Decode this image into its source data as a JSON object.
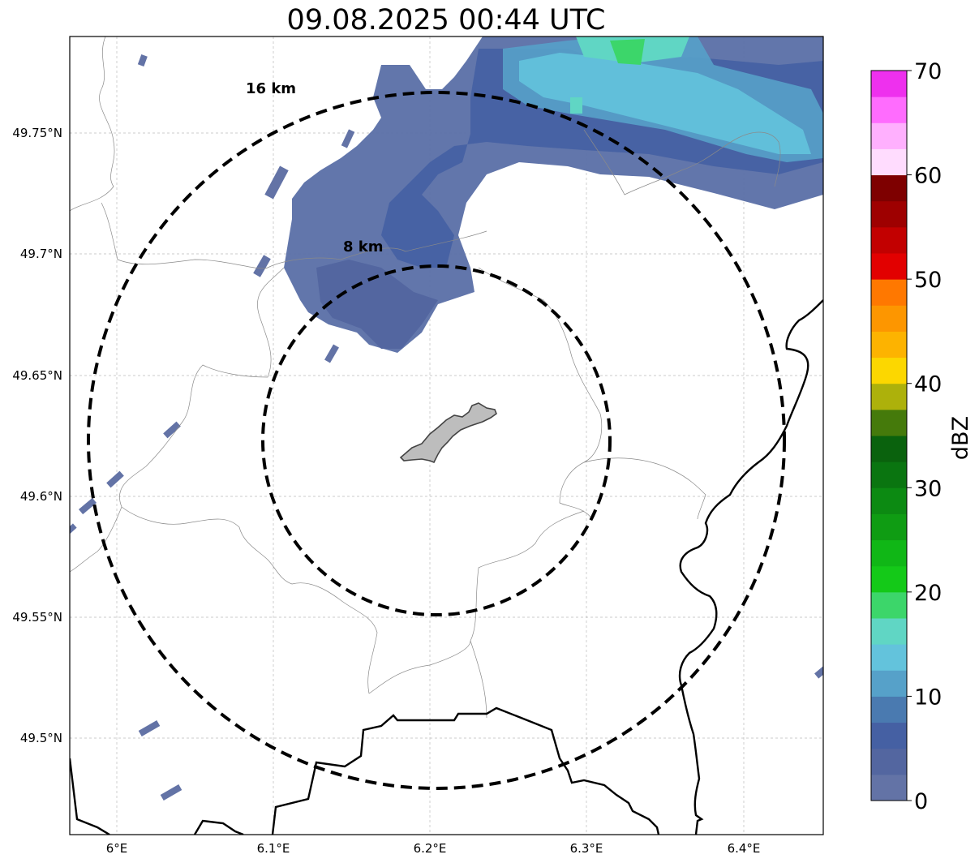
{
  "title": "09.08.2025 00:44 UTC",
  "map": {
    "lon_range": [
      5.97,
      6.45
    ],
    "lat_range": [
      49.46,
      49.79
    ],
    "lon_ticks": [
      {
        "value": 6.0,
        "label": "6°E"
      },
      {
        "value": 6.1,
        "label": "6.1°E"
      },
      {
        "value": 6.2,
        "label": "6.2°E"
      },
      {
        "value": 6.3,
        "label": "6.3°E"
      },
      {
        "value": 6.4,
        "label": "6.4°E"
      }
    ],
    "lat_ticks": [
      {
        "value": 49.75,
        "label": "49.75°N"
      },
      {
        "value": 49.7,
        "label": "49.7°N"
      },
      {
        "value": 49.65,
        "label": "49.65°N"
      },
      {
        "value": 49.6,
        "label": "49.6°N"
      },
      {
        "value": 49.55,
        "label": "49.55°N"
      },
      {
        "value": 49.5,
        "label": "49.5°N"
      }
    ],
    "grid": true,
    "range_rings": [
      {
        "label": "8 km",
        "radius_km": 8
      },
      {
        "label": "16 km",
        "radius_km": 16
      }
    ],
    "highlight_area": "city outline (gray fill)"
  },
  "colorbar": {
    "label": "dBZ",
    "min": 0,
    "max": 70,
    "ticks": [
      {
        "value": 0,
        "label": "0"
      },
      {
        "value": 10,
        "label": "10"
      },
      {
        "value": 20,
        "label": "20"
      },
      {
        "value": 30,
        "label": "30"
      },
      {
        "value": 40,
        "label": "40"
      },
      {
        "value": 50,
        "label": "50"
      },
      {
        "value": 60,
        "label": "60"
      },
      {
        "value": 70,
        "label": "70"
      }
    ],
    "colors": [
      "#6373a6",
      "#5366a0",
      "#4560a3",
      "#4a7ab0",
      "#56a1c9",
      "#63c3dc",
      "#60d6c4",
      "#3cd66a",
      "#14c918",
      "#10b716",
      "#0f9c13",
      "#0c8a12",
      "#0a7510",
      "#0a620d",
      "#457a0b",
      "#adb10b",
      "#fcd700",
      "#fdb300",
      "#fd9600",
      "#ff7800",
      "#e20000",
      "#c20000",
      "#9e0000",
      "#7e0000",
      "#ffdcfe",
      "#ffb0fe",
      "#ff6cfe",
      "#ee30ee"
    ]
  }
}
